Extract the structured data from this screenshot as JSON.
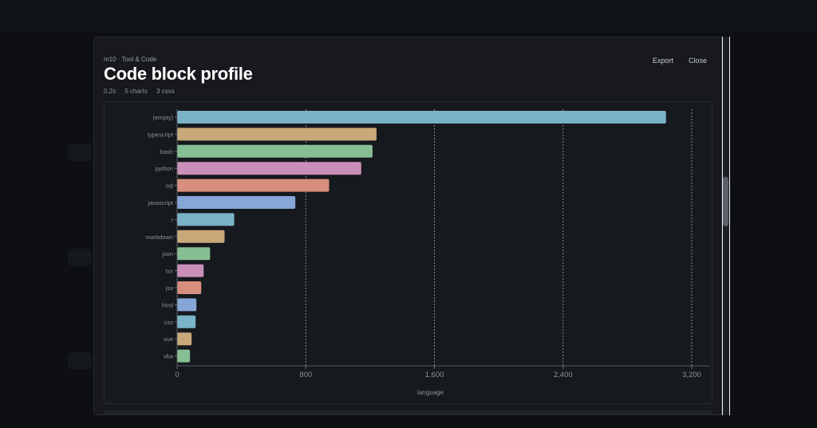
{
  "header": {
    "breadcrumb": "m10 · Tool & Code",
    "title": "Code block profile",
    "meta": [
      "0.2s",
      "5 charts",
      "3 csvs"
    ],
    "export_label": "Export",
    "close_label": "Close"
  },
  "chart_data": {
    "type": "bar",
    "orientation": "horizontal",
    "categories": [
      "(empty)",
      "typescript",
      "bash",
      "python",
      "sql",
      "javascript",
      "r",
      "markdown",
      "json",
      "tsx",
      "jsx",
      "html",
      "css",
      "vue",
      "vba"
    ],
    "values": [
      3040,
      1240,
      1215,
      1145,
      945,
      735,
      355,
      295,
      205,
      165,
      150,
      120,
      115,
      90,
      80
    ],
    "colors": [
      "#7ab2c6",
      "#c9a97a",
      "#86bf94",
      "#c98fb8",
      "#d88e7c",
      "#86a6d8"
    ],
    "xlabel": "language",
    "ylabel": "",
    "xlim": [
      0,
      3200
    ],
    "xticks": [
      0,
      800,
      1600,
      2400,
      3200
    ],
    "xtick_labels": [
      "0",
      "800",
      "1,600",
      "2,400",
      "3,200"
    ],
    "grid": "vertical-dashed",
    "legend": "none"
  }
}
